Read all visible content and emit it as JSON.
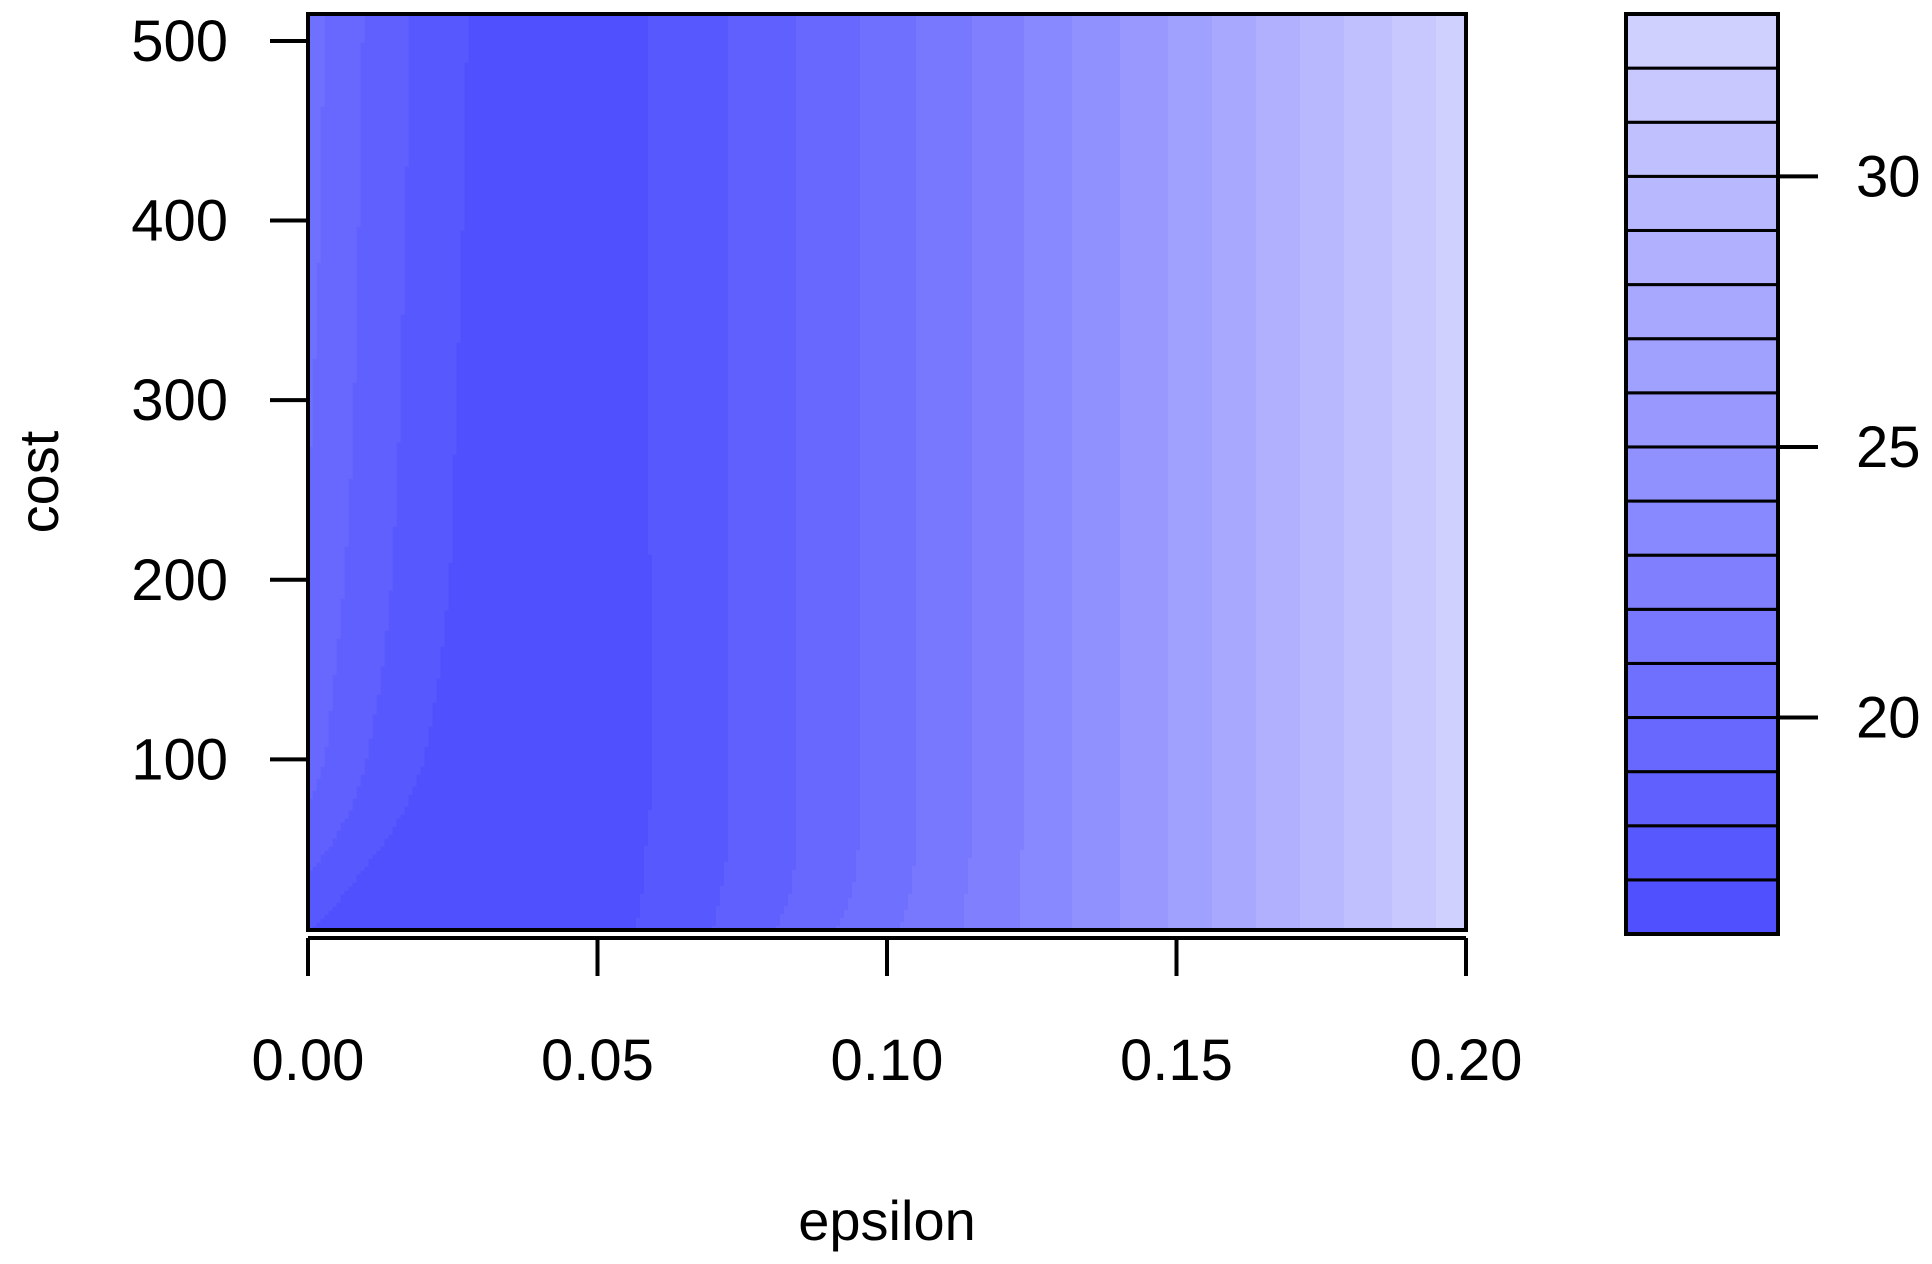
{
  "chart_data": {
    "type": "heatmap",
    "subtype": "filled-contour",
    "title": "",
    "xlabel": "epsilon",
    "ylabel": "cost",
    "xlim": [
      0.0,
      0.2
    ],
    "ylim": [
      5,
      515
    ],
    "x_ticks": [
      0.0,
      0.05,
      0.1,
      0.15,
      0.2
    ],
    "x_tick_labels": [
      "0.00",
      "0.05",
      "0.10",
      "0.15",
      "0.20"
    ],
    "y_ticks": [
      100,
      200,
      300,
      400,
      500
    ],
    "y_tick_labels": [
      "100",
      "200",
      "300",
      "400",
      "500"
    ],
    "grid": false,
    "x": [
      0.0,
      0.01,
      0.02,
      0.03,
      0.04,
      0.05,
      0.06,
      0.07,
      0.08,
      0.09,
      0.1,
      0.11,
      0.12,
      0.13,
      0.14,
      0.15,
      0.16,
      0.17,
      0.18,
      0.19,
      0.2
    ],
    "y": [
      5,
      25,
      50,
      75,
      100,
      150,
      200,
      250,
      300,
      350,
      400,
      450,
      500,
      515
    ],
    "z_grid": [
      [
        17.0,
        16.4,
        16.2,
        16.1,
        16.2,
        16.6,
        17.2,
        18.0,
        18.9,
        19.9,
        20.8,
        21.7,
        22.7,
        23.8,
        25.0,
        26.2,
        27.5,
        28.8,
        30.1,
        31.4,
        32.6
      ],
      [
        17.6,
        16.6,
        16.1,
        15.95,
        16.05,
        16.5,
        17.15,
        17.9,
        18.7,
        19.6,
        20.6,
        21.6,
        22.7,
        23.8,
        25.0,
        26.2,
        27.5,
        28.8,
        30.1,
        31.4,
        32.6
      ],
      [
        18.4,
        17.2,
        16.3,
        16.0,
        16.1,
        16.5,
        17.1,
        17.8,
        18.6,
        19.5,
        20.5,
        21.5,
        22.6,
        23.8,
        25.0,
        26.2,
        27.5,
        28.8,
        30.1,
        31.4,
        32.6
      ],
      [
        19.0,
        17.7,
        16.7,
        16.15,
        16.1,
        16.45,
        17.05,
        17.8,
        18.6,
        19.5,
        20.5,
        21.5,
        22.6,
        23.8,
        25.0,
        26.2,
        27.5,
        28.8,
        30.1,
        31.4,
        32.6
      ],
      [
        19.4,
        18.0,
        17.0,
        16.3,
        16.15,
        16.45,
        17.05,
        17.8,
        18.6,
        19.5,
        20.5,
        21.5,
        22.6,
        23.8,
        25.0,
        26.2,
        27.5,
        28.8,
        30.1,
        31.4,
        32.6
      ],
      [
        19.6,
        18.3,
        17.2,
        16.45,
        16.2,
        16.45,
        17.05,
        17.8,
        18.6,
        19.5,
        20.5,
        21.5,
        22.6,
        23.8,
        25.0,
        26.2,
        27.5,
        28.8,
        30.1,
        31.4,
        32.6
      ],
      [
        19.8,
        18.5,
        17.35,
        16.55,
        16.3,
        16.5,
        17.05,
        17.8,
        18.6,
        19.5,
        20.5,
        21.5,
        22.6,
        23.8,
        25.0,
        26.2,
        27.5,
        28.8,
        30.1,
        31.4,
        32.6
      ],
      [
        20.0,
        18.6,
        17.45,
        16.55,
        16.4,
        16.55,
        17.05,
        17.8,
        18.6,
        19.5,
        20.5,
        21.5,
        22.6,
        23.8,
        25.0,
        26.2,
        27.5,
        28.8,
        30.1,
        31.4,
        32.6
      ],
      [
        20.1,
        18.7,
        17.5,
        16.6,
        16.45,
        16.6,
        17.05,
        17.8,
        18.6,
        19.5,
        20.5,
        21.5,
        22.6,
        23.8,
        25.0,
        26.2,
        27.5,
        28.8,
        30.1,
        31.4,
        32.6
      ],
      [
        20.2,
        18.75,
        17.55,
        16.65,
        16.5,
        16.6,
        17.05,
        17.8,
        18.6,
        19.5,
        20.5,
        21.5,
        22.6,
        23.8,
        25.0,
        26.2,
        27.5,
        28.8,
        30.1,
        31.4,
        32.6
      ],
      [
        20.3,
        18.8,
        17.6,
        16.7,
        16.55,
        16.6,
        17.05,
        17.8,
        18.6,
        19.5,
        20.5,
        21.5,
        22.6,
        23.8,
        25.0,
        26.2,
        27.5,
        28.8,
        30.1,
        31.4,
        32.6
      ],
      [
        20.35,
        18.85,
        17.65,
        16.72,
        16.58,
        16.6,
        17.05,
        17.8,
        18.6,
        19.5,
        20.5,
        21.5,
        22.6,
        23.8,
        25.0,
        26.2,
        27.5,
        28.8,
        30.1,
        31.4,
        32.6
      ],
      [
        20.4,
        18.9,
        17.7,
        16.75,
        16.6,
        16.6,
        17.05,
        17.8,
        18.6,
        19.5,
        20.5,
        21.5,
        22.6,
        23.8,
        25.0,
        26.2,
        27.5,
        28.8,
        30.1,
        31.4,
        32.6
      ],
      [
        20.4,
        18.9,
        17.7,
        16.75,
        16.6,
        16.6,
        17.05,
        17.8,
        18.6,
        19.5,
        20.5,
        21.5,
        22.6,
        23.8,
        25.0,
        26.2,
        27.5,
        28.8,
        30.1,
        31.4,
        32.6
      ]
    ],
    "levels": [
      16,
      17,
      18,
      19,
      20,
      21,
      22,
      23,
      24,
      25,
      26,
      27,
      28,
      29,
      30,
      31,
      32,
      33
    ],
    "colorbar": {
      "ticks": [
        20,
        25,
        30
      ],
      "tick_labels": [
        "20",
        "25",
        "30"
      ],
      "range": [
        16,
        33
      ]
    },
    "colors": {
      "low": "#5050ff",
      "high": "#d0d0ff",
      "axis": "#000000"
    }
  }
}
